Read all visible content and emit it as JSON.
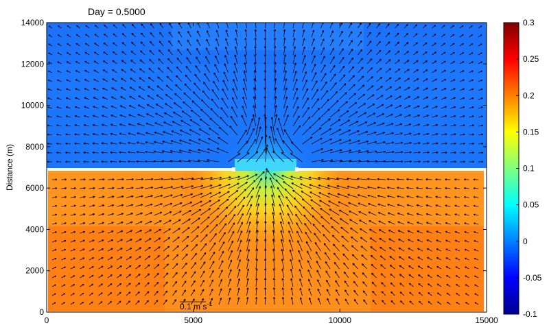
{
  "chart_data": {
    "type": "heatmap",
    "title": "Day = 0.5000",
    "xlabel": "",
    "ylabel": "Distance (m)",
    "xlim": [
      0,
      15000
    ],
    "ylim": [
      0,
      14000
    ],
    "x_ticks": [
      "0",
      "5000",
      "10000",
      "15000"
    ],
    "x_tick_values": [
      0,
      5000,
      10000,
      15000
    ],
    "y_ticks": [
      "0",
      "2000",
      "4000",
      "6000",
      "8000",
      "10000",
      "12000",
      "14000"
    ],
    "y_tick_values": [
      0,
      2000,
      4000,
      6000,
      8000,
      10000,
      12000,
      14000
    ],
    "colorbar": {
      "min": -0.1,
      "max": 0.3,
      "colormap": "jet",
      "ticks": [
        "-0.1",
        "-0.05",
        "0",
        "0.05",
        "0.1",
        "0.15",
        "0.2",
        "0.25",
        "0.3"
      ],
      "tick_values": [
        -0.1,
        -0.05,
        0,
        0.05,
        0.1,
        0.15,
        0.2,
        0.25,
        0.3
      ]
    },
    "regions": {
      "upper_basin": {
        "y_range": [
          7000,
          14000
        ],
        "typical_value": -0.01
      },
      "lower_basin": {
        "y_range": [
          0,
          6800
        ],
        "typical_value": 0.21
      },
      "barrier_y": 6900,
      "inlet_x_range": [
        6500,
        8500
      ]
    },
    "vector_scale_label": "0.1 m s",
    "vector_scale_exponent": "-1",
    "field": "velocity vectors over surface elevation"
  }
}
